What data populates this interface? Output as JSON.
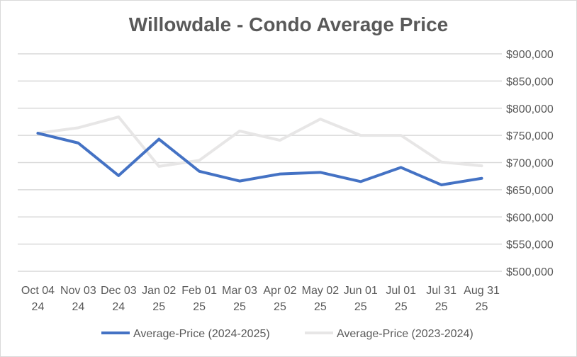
{
  "chart_data": {
    "type": "line",
    "title": "Willowdale - Condo Average Price",
    "xlabel": "",
    "ylabel": "",
    "categories": [
      [
        "Oct 04",
        "24"
      ],
      [
        "Nov 03",
        "24"
      ],
      [
        "Dec 03",
        "24"
      ],
      [
        "Jan 02",
        "25"
      ],
      [
        "Feb 01",
        "25"
      ],
      [
        "Mar 03",
        "25"
      ],
      [
        "Apr 02",
        "25"
      ],
      [
        "May 02",
        "25"
      ],
      [
        "Jun 01",
        "25"
      ],
      [
        "Jul 01",
        "25"
      ],
      [
        "Jul 31",
        "25"
      ],
      [
        "Aug 31",
        "25"
      ]
    ],
    "ylim": [
      500000,
      900000
    ],
    "yticks": [
      "$500,000",
      "$550,000",
      "$600,000",
      "$650,000",
      "$700,000",
      "$750,000",
      "$800,000",
      "$850,000",
      "$900,000"
    ],
    "grid": true,
    "legend_position": "bottom",
    "series": [
      {
        "name": "Average-Price (2024-2025)",
        "color": "#4472C4",
        "values": [
          754000,
          736000,
          676000,
          743000,
          684000,
          666000,
          679000,
          682000,
          665000,
          691000,
          659000,
          671000
        ]
      },
      {
        "name": "Average-Price (2023-2024)",
        "color": "#E7E6E6",
        "values": [
          754000,
          764000,
          784000,
          693000,
          704000,
          758000,
          741000,
          780000,
          750000,
          750000,
          701000,
          694000
        ]
      }
    ]
  }
}
